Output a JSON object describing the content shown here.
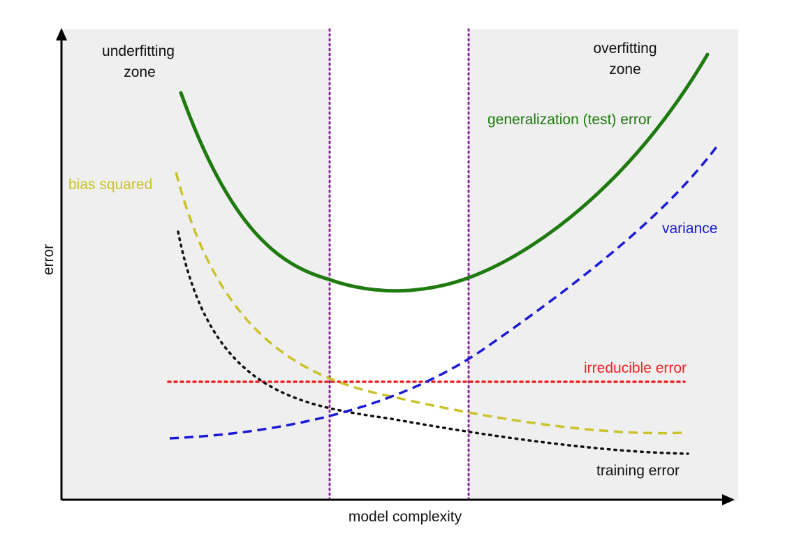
{
  "labels": {
    "underfitting_line1": "underfitting",
    "underfitting_line2": "zone",
    "overfitting_line1": "overfitting",
    "overfitting_line2": "zone",
    "generalization": "generalization (test) error",
    "bias": "bias squared",
    "variance": "variance",
    "irreducible": "irreducible error",
    "training": "training error",
    "x_axis": "model complexity",
    "y_axis": "error"
  },
  "colors": {
    "zone_fill": "#efefef",
    "generalization": "#1f7a10",
    "bias": "#c9c22a",
    "variance": "#1a1ad6",
    "irreducible": "#ee2222",
    "training": "#111111",
    "zone_boundary": "#8a2a9a",
    "axis": "#000000",
    "text": "#111111"
  }
}
